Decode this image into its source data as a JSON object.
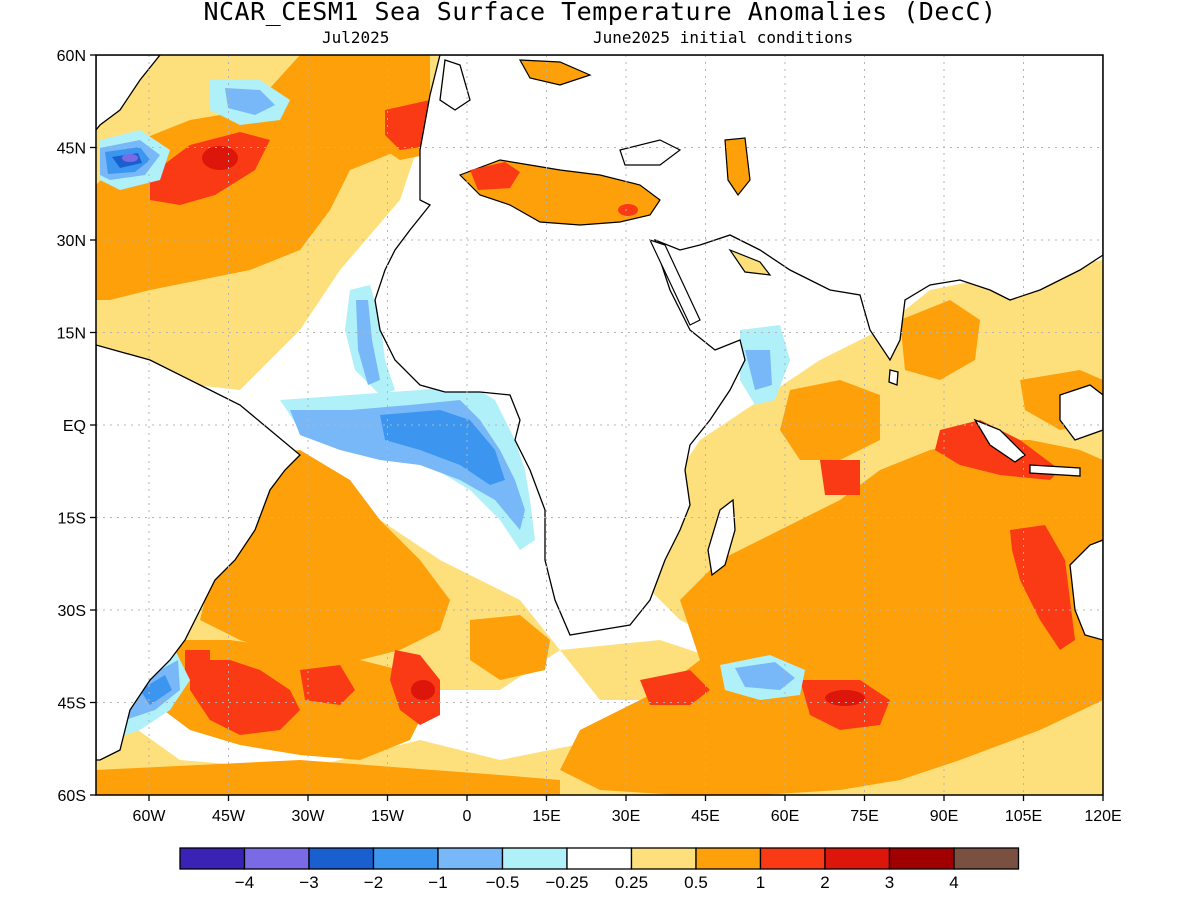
{
  "title": "NCAR_CESM1 Sea Surface Temperature Anomalies (DecC)",
  "subtitle_left": "Jul2025",
  "subtitle_right": "June2025 initial conditions",
  "y_ticks": [
    "60N",
    "45N",
    "30N",
    "15N",
    "EQ",
    "15S",
    "30S",
    "45S",
    "60S"
  ],
  "x_ticks": [
    "60W",
    "45W",
    "30W",
    "15W",
    "0",
    "15E",
    "30E",
    "45E",
    "60E",
    "75E",
    "90E",
    "105E",
    "120E"
  ],
  "lon_range": [
    -70,
    120
  ],
  "lat_range": [
    -60,
    60
  ],
  "colorbar": {
    "colors": [
      "#3a22b4",
      "#7a6ae6",
      "#1a5fd0",
      "#3c96f0",
      "#78b8f8",
      "#b0f0f8",
      "#ffffff",
      "#fde07c",
      "#fda00a",
      "#fa3a14",
      "#dc160a",
      "#a00000",
      "#7a5040"
    ],
    "labels": [
      "−4",
      "−3",
      "−2",
      "−1",
      "−0.5",
      "−0.25",
      "0.25",
      "0.5",
      "1",
      "2",
      "3",
      "4"
    ]
  },
  "colors": {
    "ocean_neutral": "#ffffff",
    "land": "#ffffff",
    "coastline": "#000000",
    "grid": "#b4b4b4"
  }
}
